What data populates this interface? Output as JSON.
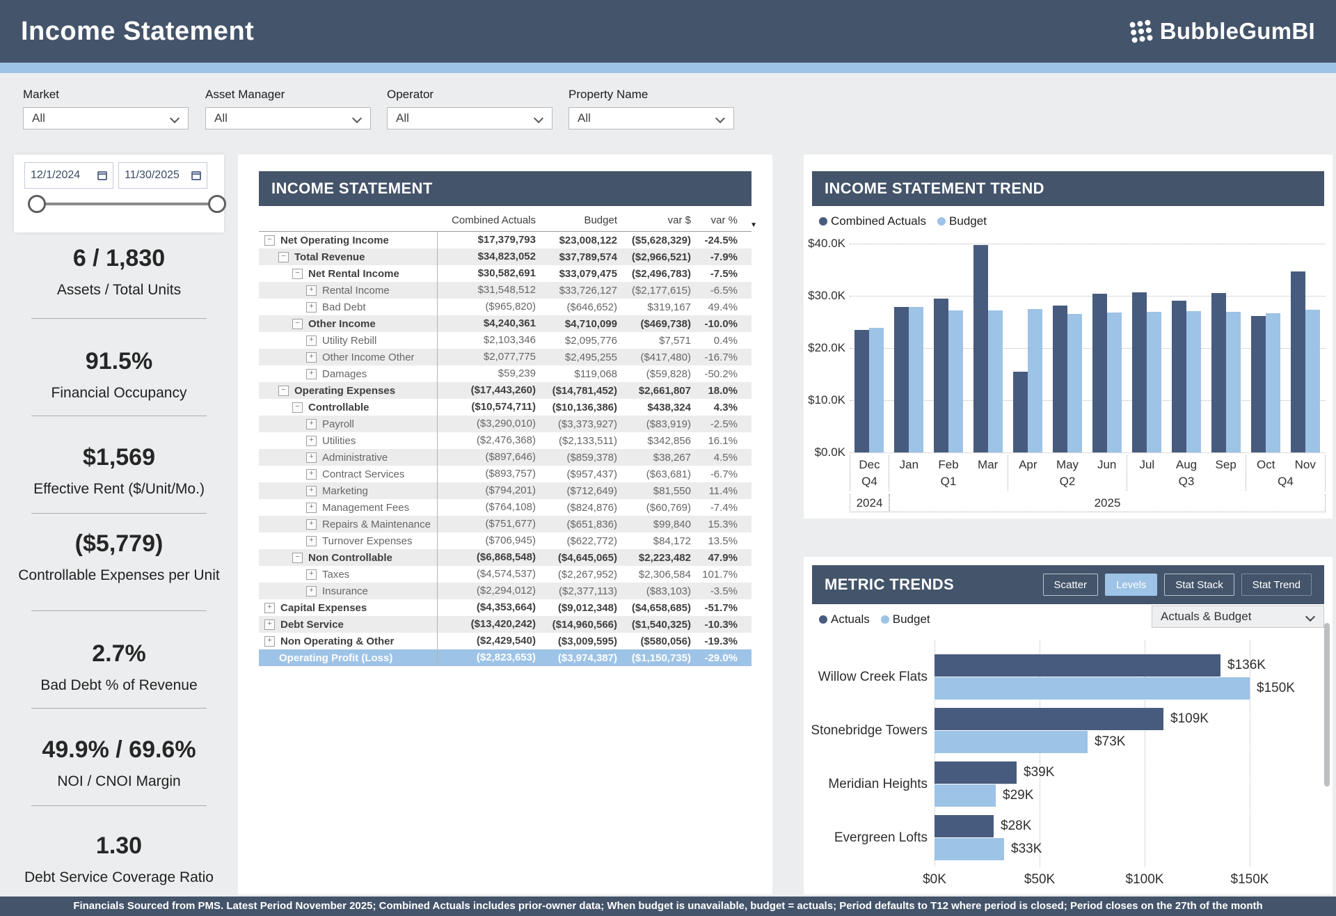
{
  "header": {
    "title": "Income Statement",
    "brand": "BubbleGumBI"
  },
  "filters": [
    {
      "label": "Market",
      "value": "All"
    },
    {
      "label": "Asset Manager",
      "value": "All"
    },
    {
      "label": "Operator",
      "value": "All"
    },
    {
      "label": "Property Name",
      "value": "All"
    }
  ],
  "date_range": {
    "start": "12/1/2024",
    "end": "11/30/2025"
  },
  "kpis": [
    {
      "value": "6 / 1,830",
      "label": "Assets / Total Units"
    },
    {
      "value": "91.5%",
      "label": "Financial Occupancy"
    },
    {
      "value": "$1,569",
      "label": "Effective Rent ($/Unit/Mo.)"
    },
    {
      "value": "($5,779)",
      "label": "Controllable Expenses per Unit"
    },
    {
      "value": "2.7%",
      "label": "Bad Debt % of Revenue"
    },
    {
      "value": "49.9% / 69.6%",
      "label": "NOI / CNOI Margin"
    },
    {
      "value": "1.30",
      "label": "Debt Service Coverage Ratio"
    }
  ],
  "income_statement": {
    "title": "INCOME STATEMENT",
    "columns": [
      "Combined Actuals",
      "Budget",
      "var $",
      "var %"
    ],
    "rows": [
      {
        "label": "Net Operating Income",
        "values": [
          "$17,379,793",
          "$23,008,122",
          "($5,628,329)",
          "-24.5%"
        ],
        "level": 0,
        "icon": "minus",
        "kind": "group"
      },
      {
        "label": "Total Revenue",
        "values": [
          "$34,823,052",
          "$37,789,574",
          "($2,966,521)",
          "-7.9%"
        ],
        "level": 1,
        "icon": "minus",
        "kind": "group"
      },
      {
        "label": "Net Rental Income",
        "values": [
          "$30,582,691",
          "$33,079,475",
          "($2,496,783)",
          "-7.5%"
        ],
        "level": 2,
        "icon": "minus",
        "kind": "group"
      },
      {
        "label": "Rental Income",
        "values": [
          "$31,548,512",
          "$33,726,127",
          "($2,177,615)",
          "-6.5%"
        ],
        "level": 3,
        "icon": "plus",
        "kind": "leaf"
      },
      {
        "label": "Bad Debt",
        "values": [
          "($965,820)",
          "($646,652)",
          "$319,167",
          "49.4%"
        ],
        "level": 3,
        "icon": "plus",
        "kind": "leaf"
      },
      {
        "label": "Other Income",
        "values": [
          "$4,240,361",
          "$4,710,099",
          "($469,738)",
          "-10.0%"
        ],
        "level": 2,
        "icon": "minus",
        "kind": "group"
      },
      {
        "label": "Utility Rebill",
        "values": [
          "$2,103,346",
          "$2,095,776",
          "$7,571",
          "0.4%"
        ],
        "level": 3,
        "icon": "plus",
        "kind": "leaf"
      },
      {
        "label": "Other Income Other",
        "values": [
          "$2,077,775",
          "$2,495,255",
          "($417,480)",
          "-16.7%"
        ],
        "level": 3,
        "icon": "plus",
        "kind": "leaf"
      },
      {
        "label": "Damages",
        "values": [
          "$59,239",
          "$119,068",
          "($59,828)",
          "-50.2%"
        ],
        "level": 3,
        "icon": "plus",
        "kind": "leaf"
      },
      {
        "label": "Operating Expenses",
        "values": [
          "($17,443,260)",
          "($14,781,452)",
          "$2,661,807",
          "18.0%"
        ],
        "level": 1,
        "icon": "minus",
        "kind": "group"
      },
      {
        "label": "Controllable",
        "values": [
          "($10,574,711)",
          "($10,136,386)",
          "$438,324",
          "4.3%"
        ],
        "level": 2,
        "icon": "minus",
        "kind": "group"
      },
      {
        "label": "Payroll",
        "values": [
          "($3,290,010)",
          "($3,373,927)",
          "($83,919)",
          "-2.5%"
        ],
        "level": 3,
        "icon": "plus",
        "kind": "leaf"
      },
      {
        "label": "Utilities",
        "values": [
          "($2,476,368)",
          "($2,133,511)",
          "$342,856",
          "16.1%"
        ],
        "level": 3,
        "icon": "plus",
        "kind": "leaf"
      },
      {
        "label": "Administrative",
        "values": [
          "($897,646)",
          "($859,378)",
          "$38,267",
          "4.5%"
        ],
        "level": 3,
        "icon": "plus",
        "kind": "leaf"
      },
      {
        "label": "Contract Services",
        "values": [
          "($893,757)",
          "($957,437)",
          "($63,681)",
          "-6.7%"
        ],
        "level": 3,
        "icon": "plus",
        "kind": "leaf"
      },
      {
        "label": "Marketing",
        "values": [
          "($794,201)",
          "($712,649)",
          "$81,550",
          "11.4%"
        ],
        "level": 3,
        "icon": "plus",
        "kind": "leaf"
      },
      {
        "label": "Management Fees",
        "values": [
          "($764,108)",
          "($824,876)",
          "($60,769)",
          "-7.4%"
        ],
        "level": 3,
        "icon": "plus",
        "kind": "leaf"
      },
      {
        "label": "Repairs & Maintenance",
        "values": [
          "($751,677)",
          "($651,836)",
          "$99,840",
          "15.3%"
        ],
        "level": 3,
        "icon": "plus",
        "kind": "leaf"
      },
      {
        "label": "Turnover Expenses",
        "values": [
          "($706,945)",
          "($622,772)",
          "$84,172",
          "13.5%"
        ],
        "level": 3,
        "icon": "plus",
        "kind": "leaf"
      },
      {
        "label": "Non Controllable",
        "values": [
          "($6,868,548)",
          "($4,645,065)",
          "$2,223,482",
          "47.9%"
        ],
        "level": 2,
        "icon": "minus",
        "kind": "group"
      },
      {
        "label": "Taxes",
        "values": [
          "($4,574,537)",
          "($2,267,952)",
          "$2,306,584",
          "101.7%"
        ],
        "level": 3,
        "icon": "plus",
        "kind": "leaf"
      },
      {
        "label": "Insurance",
        "values": [
          "($2,294,012)",
          "($2,377,113)",
          "($83,103)",
          "-3.5%"
        ],
        "level": 3,
        "icon": "plus",
        "kind": "leaf"
      },
      {
        "label": "Capital Expenses",
        "values": [
          "($4,353,664)",
          "($9,012,348)",
          "($4,658,685)",
          "-51.7%"
        ],
        "level": 0,
        "icon": "plus",
        "kind": "group"
      },
      {
        "label": "Debt Service",
        "values": [
          "($13,420,242)",
          "($14,960,566)",
          "($1,540,325)",
          "-10.3%"
        ],
        "level": 0,
        "icon": "plus",
        "kind": "group"
      },
      {
        "label": "Non Operating & Other",
        "values": [
          "($2,429,540)",
          "($3,009,595)",
          "($580,056)",
          "-19.3%"
        ],
        "level": 0,
        "icon": "plus",
        "kind": "group"
      },
      {
        "label": "Operating Profit (Loss)",
        "values": [
          "($2,823,653)",
          "($3,974,387)",
          "($1,150,735)",
          "-29.0%"
        ],
        "level": 0,
        "icon": null,
        "kind": "total"
      }
    ]
  },
  "chart_data": [
    {
      "id": "income_statement_trend",
      "type": "bar",
      "title": "INCOME STATEMENT TREND",
      "unit": "$K",
      "x_groups": [
        {
          "year": "2024",
          "quarter": "Q4",
          "months": [
            "Dec"
          ]
        },
        {
          "year": "2025",
          "quarter": "Q1",
          "months": [
            "Jan",
            "Feb",
            "Mar"
          ]
        },
        {
          "year": "2025",
          "quarter": "Q2",
          "months": [
            "Apr",
            "May",
            "Jun"
          ]
        },
        {
          "year": "2025",
          "quarter": "Q3",
          "months": [
            "Jul",
            "Aug",
            "Sep"
          ]
        },
        {
          "year": "2025",
          "quarter": "Q4",
          "months": [
            "Oct",
            "Nov"
          ]
        }
      ],
      "year_bands": [
        {
          "label": "2024",
          "months": 1
        },
        {
          "label": "2025",
          "months": 11
        }
      ],
      "series": [
        {
          "name": "Combined Actuals",
          "color": "#475B7E",
          "values": [
            23.4,
            27.9,
            29.5,
            39.7,
            15.4,
            28.1,
            30.4,
            30.7,
            29.0,
            30.5,
            26.1,
            34.7
          ]
        },
        {
          "name": "Budget",
          "color": "#9DC3E6",
          "values": [
            23.8,
            27.9,
            27.2,
            27.2,
            27.4,
            26.5,
            26.8,
            26.9,
            27.0,
            26.9,
            26.6,
            27.3
          ]
        }
      ],
      "ylim": [
        0,
        40
      ],
      "yticks": [
        {
          "label": "$0.0K",
          "v": 0
        },
        {
          "label": "$10.0K",
          "v": 10
        },
        {
          "label": "$20.0K",
          "v": 20
        },
        {
          "label": "$30.0K",
          "v": 30
        },
        {
          "label": "$40.0K",
          "v": 40
        }
      ],
      "grid": "dotted-horizontal",
      "legend_position": "top-left"
    },
    {
      "id": "metric_trends",
      "type": "bar-horizontal",
      "title": "METRIC TRENDS",
      "unit": "$K",
      "categories": [
        "Willow Creek Flats",
        "Stonebridge Towers",
        "Meridian Heights",
        "Evergreen Lofts"
      ],
      "series": [
        {
          "name": "Actuals",
          "color": "#475B7E",
          "values": [
            136,
            109,
            39,
            28
          ],
          "labels": [
            "$136K",
            "$109K",
            "$39K",
            "$28K"
          ]
        },
        {
          "name": "Budget",
          "color": "#9DC3E6",
          "values": [
            150,
            73,
            29,
            33
          ],
          "labels": [
            "$150K",
            "$73K",
            "$29K",
            "$33K"
          ]
        }
      ],
      "xlim": [
        0,
        150
      ],
      "xticks": [
        {
          "label": "$0K",
          "v": 0
        },
        {
          "label": "$50K",
          "v": 50
        },
        {
          "label": "$100K",
          "v": 100
        },
        {
          "label": "$150K",
          "v": 150
        }
      ],
      "grid": "dotted-vertical",
      "legend_position": "top-left"
    }
  ],
  "metric_trends_panel": {
    "buttons": [
      {
        "label": "Scatter",
        "active": false,
        "variant": "solid"
      },
      {
        "label": "Levels",
        "active": true,
        "variant": "solid"
      },
      {
        "label": "Stat Stack",
        "active": false,
        "variant": "solid"
      },
      {
        "label": "Stat Trend",
        "active": false,
        "variant": "dotted"
      }
    ],
    "dropdown_value": "Actuals & Budget"
  },
  "footer": {
    "text": "Financials Sourced from PMS. Latest Period November 2025; Combined Actuals includes prior-owner data; When budget is unavailable, budget = actuals; Period defaults to T12 where period is closed; Period closes on the 27th of the month"
  },
  "colors": {
    "header_bg": "#44546A",
    "accent": "#9DC3E6",
    "actuals_bar": "#475B7E",
    "budget_bar": "#9DC3E6",
    "page_bg": "#ECEDEE",
    "table_stripe": "#ECECEC",
    "highlight_row": "#9DC3E6"
  }
}
